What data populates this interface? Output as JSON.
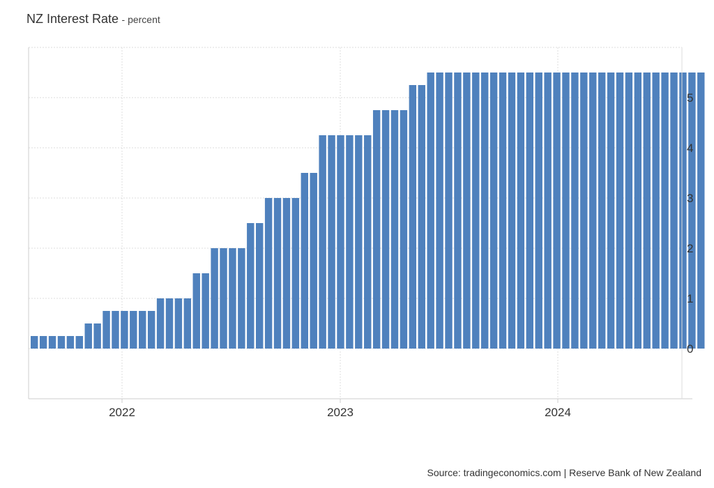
{
  "title": "NZ Interest Rate",
  "subtitle": "percent",
  "source": "Source: tradingeconomics.com | Reserve Bank of New Zealand",
  "chart_data": {
    "type": "bar",
    "series": [
      {
        "values": [
          0.25,
          0.25,
          0.25,
          0.25,
          0.25,
          0.25,
          0.5,
          0.5,
          0.75,
          0.75,
          0.75,
          0.75,
          0.75,
          0.75,
          1,
          1,
          1,
          1,
          1.5,
          1.5,
          2,
          2,
          2,
          2,
          2.5,
          2.5,
          3,
          3,
          3,
          3,
          3.5,
          3.5,
          4.25,
          4.25,
          4.25,
          4.25,
          4.25,
          4.25,
          4.75,
          4.75,
          4.75,
          4.75,
          5.25,
          5.25,
          5.5,
          5.5,
          5.5,
          5.5,
          5.5,
          5.5,
          5.5,
          5.5,
          5.5,
          5.5,
          5.5,
          5.5,
          5.5,
          5.5,
          5.5,
          5.5,
          5.5,
          5.5,
          5.5,
          5.5,
          5.5,
          5.5,
          5.5,
          5.5,
          5.5,
          5.5,
          5.5,
          5.5,
          5.5,
          5.5,
          5.5
        ]
      }
    ],
    "x_labels": [
      "2022",
      "2023",
      "2024"
    ],
    "y_ticks": [
      0,
      1,
      2,
      3,
      4,
      5
    ],
    "ylim": [
      -1,
      6
    ],
    "y_axis_side": "right",
    "grid": true,
    "bar_color": "#4f81bd"
  }
}
